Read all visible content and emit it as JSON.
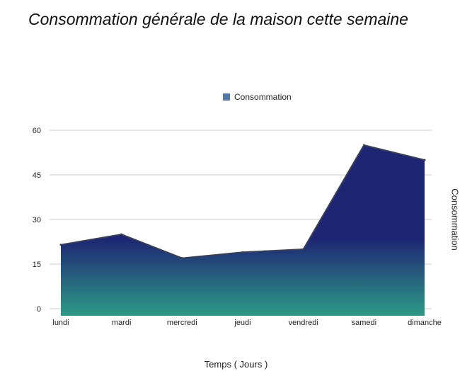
{
  "chart_data": {
    "type": "area",
    "title": "Consommation générale de la maison cette semaine",
    "categories": [
      "lundi",
      "mardi",
      "mercredi",
      "jeudi",
      "vendredi",
      "samedi",
      "dimanche"
    ],
    "series": [
      {
        "name": "Consommation",
        "values": [
          21.5,
          25,
          17,
          19,
          20,
          55,
          50
        ]
      }
    ],
    "xlabel": "Temps ( Jours )",
    "ylabel": "Consommation",
    "ylim": [
      0,
      60
    ],
    "yticks": [
      "0",
      "15",
      "30",
      "45",
      "60"
    ],
    "grid": true,
    "legend": "top",
    "colors": {
      "top": "#1e2673",
      "bottom": "#2e9a86",
      "legend": "#4f77a8",
      "grid": "#cccccc"
    }
  }
}
